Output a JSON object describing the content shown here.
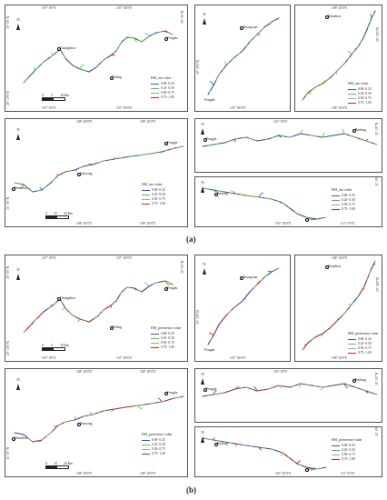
{
  "colors": {
    "c1": "#1f5fc4",
    "c2": "#58c33a",
    "c3": "#a0a0a0",
    "c4": "#d12222"
  },
  "ranges": [
    "0.00- 0.25",
    "0.25- 0.50",
    "0.50- 0.75",
    "0.75- 1.00"
  ],
  "captions": {
    "a": "(a)",
    "b": "(b)"
  },
  "north": "N",
  "legend_titles": {
    "use": "HSI_use value",
    "pref": "HSI_preference value"
  },
  "cities": {
    "changshou": "Changshou",
    "fuling": "Fuling",
    "fengdu": "Fengdu",
    "zhongxian": "Zhongxian",
    "wanzhou": "Wanzhou",
    "yunyang": "Yunyang",
    "fengjie": "Fengjie",
    "badong": "Badong",
    "zigui": "Zigui"
  },
  "scales": {
    "s1": [
      "0",
      "5",
      "10 Km"
    ],
    "s2": [
      "0",
      "10",
      "20 Km"
    ]
  },
  "ticks": {
    "p1_top": [
      "107° 0'0\"E",
      "107° 30'0\"E"
    ],
    "p1_left": [
      "30° 0'0\"N",
      "29° 30'0\"N"
    ],
    "p1_right": [
      "30° 0'0\"N"
    ],
    "p2_top": [
      "107° 50'0\"E"
    ],
    "p2_left": [
      "30° 30'0\"N"
    ],
    "p3_top": [
      "108° 20'0\"E"
    ],
    "p3_right": [
      "30° 40'0\"N"
    ],
    "p4_top": [
      "108° 40'0\"E",
      "109° 20'0\"E"
    ],
    "p4_left": [
      "31° 0'0\"N"
    ],
    "p5_top": [
      "110° 0'0\"E"
    ],
    "p5_right": [
      "31° 0'0\"N"
    ],
    "p6_bottom": [
      "110° 30'0\"E",
      "111° 0'0\"E"
    ],
    "p6_right": [
      "31° 0'0\"N"
    ]
  }
}
